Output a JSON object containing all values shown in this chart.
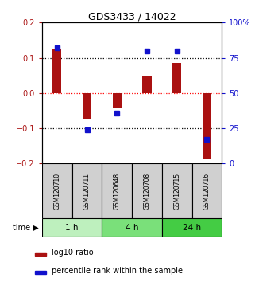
{
  "title": "GDS3433 / 14022",
  "samples": [
    "GSM120710",
    "GSM120711",
    "GSM120648",
    "GSM120708",
    "GSM120715",
    "GSM120716"
  ],
  "log10_ratio": [
    0.125,
    -0.075,
    -0.04,
    0.05,
    0.085,
    -0.185
  ],
  "percentile_rank": [
    82,
    24,
    36,
    80,
    80,
    17
  ],
  "time_groups": [
    {
      "label": "1 h",
      "start": 0,
      "end": 1,
      "color": "#bef0be"
    },
    {
      "label": "4 h",
      "start": 2,
      "end": 3,
      "color": "#7ae07a"
    },
    {
      "label": "24 h",
      "start": 4,
      "end": 5,
      "color": "#44cc44"
    }
  ],
  "bar_color": "#aa1111",
  "dot_color": "#1111cc",
  "ylim_left": [
    -0.2,
    0.2
  ],
  "ylim_right": [
    0,
    100
  ],
  "yticks_left": [
    -0.2,
    -0.1,
    0,
    0.1,
    0.2
  ],
  "yticks_right": [
    0,
    25,
    50,
    75,
    100
  ],
  "hlines_dotted": [
    -0.1,
    0.1
  ],
  "hline_red": 0.0,
  "background_color": "#ffffff",
  "legend_labels": [
    "log10 ratio",
    "percentile rank within the sample"
  ],
  "title_fontsize": 9,
  "tick_fontsize": 7,
  "bar_width": 0.3,
  "dot_size": 4
}
